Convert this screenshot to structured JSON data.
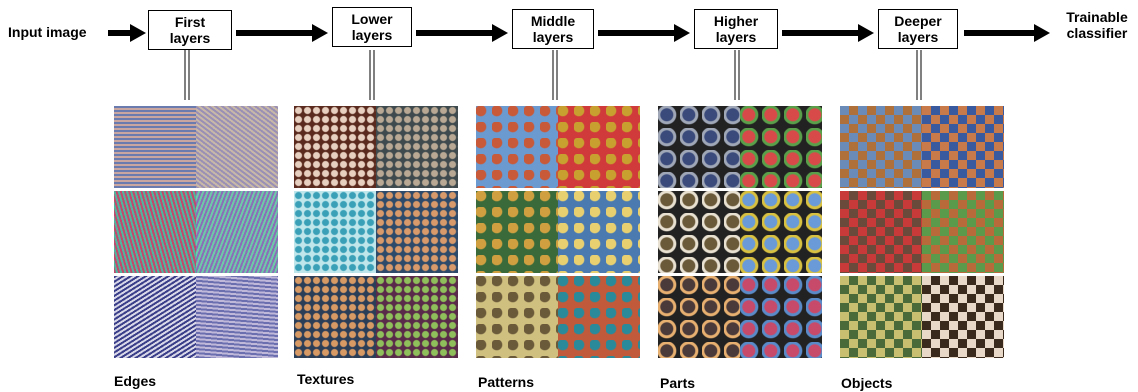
{
  "input_label": "Input image",
  "stages": [
    {
      "line1": "First",
      "line2": "layers"
    },
    {
      "line1": "Lower",
      "line2": "layers"
    },
    {
      "line1": "Middle",
      "line2": "layers"
    },
    {
      "line1": "Higher",
      "line2": "layers"
    },
    {
      "line1": "Deeper",
      "line2": "layers"
    }
  ],
  "classifier": {
    "line1": "Trainable",
    "line2": "classifier"
  },
  "categories": [
    "Edges",
    "Textures",
    "Patterns",
    "Parts",
    "Objects"
  ],
  "tile_palettes": [
    [
      [
        "#6a7bb0",
        "#c9a7a0"
      ],
      [
        "#9a8fb5",
        "#c7b8a8"
      ],
      [
        "#c2496b",
        "#4fb6a0"
      ],
      [
        "#8a6fb8",
        "#6ec9a8"
      ],
      [
        "#3b3f8a",
        "#d8d8e8"
      ],
      [
        "#6b6fb0",
        "#c0b8d8"
      ]
    ],
    [
      [
        "#5a2a1e",
        "#e8d0c0"
      ],
      [
        "#3e4a4e",
        "#b8a894"
      ],
      [
        "#bfe6ea",
        "#3aa0b8"
      ],
      [
        "#2e4a6a",
        "#d89a6a"
      ],
      [
        "#2a3e58",
        "#d89a64"
      ],
      [
        "#5a2a4a",
        "#8fbf5a"
      ]
    ],
    [
      [
        "#c85a3a",
        "#6a9ad0"
      ],
      [
        "#c8a030",
        "#d03a3a"
      ],
      [
        "#d0a040",
        "#3a6a3a"
      ],
      [
        "#e8d070",
        "#4a7ab0"
      ],
      [
        "#6a5a3a",
        "#d0c080"
      ],
      [
        "#2a8a9a",
        "#c05a3a"
      ]
    ],
    [
      [
        "#3a4a7a",
        "#a0a8b8"
      ],
      [
        "#d84a4a",
        "#5aa04a"
      ],
      [
        "#6a5a3a",
        "#e8e0d0"
      ],
      [
        "#6a9ad8",
        "#d8c040"
      ],
      [
        "#4a3a3a",
        "#e8b070"
      ],
      [
        "#c84a6a",
        "#5a8ac8"
      ]
    ],
    [
      [
        "#b0703a",
        "#6a8ab8"
      ],
      [
        "#3a5aa0",
        "#c87a4a"
      ],
      [
        "#6a4a3a",
        "#c83a3a"
      ],
      [
        "#b86a3a",
        "#5a9a4a"
      ],
      [
        "#4a6a3a",
        "#c8c070"
      ],
      [
        "#3a2a1e",
        "#e8d8c8"
      ]
    ]
  ]
}
